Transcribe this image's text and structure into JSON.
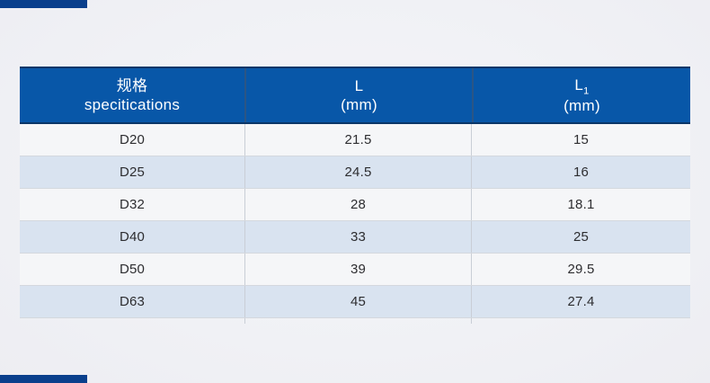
{
  "page": {
    "background_color": "#f0f1f5",
    "corner_bar_color": "#0a3f8c"
  },
  "table": {
    "header": {
      "background_color": "#0857a8",
      "border_color": "#0a3668",
      "text_color": "#ffffff",
      "columns": [
        {
          "line1": "规格",
          "line2": "specitications"
        },
        {
          "line1": "L",
          "line2": "(mm)"
        },
        {
          "line1": "L",
          "sub": "1",
          "line2": "(mm)"
        }
      ]
    },
    "row_colors": {
      "light": "#f5f6f8",
      "blue": "#d9e3f0"
    },
    "rows": [
      {
        "spec": "D20",
        "l": "21.5",
        "l1": "15"
      },
      {
        "spec": "D25",
        "l": "24.5",
        "l1": "16"
      },
      {
        "spec": "D32",
        "l": "28",
        "l1": "18.1"
      },
      {
        "spec": "D40",
        "l": "33",
        "l1": "25"
      },
      {
        "spec": "D50",
        "l": "39",
        "l1": "29.5"
      },
      {
        "spec": "D63",
        "l": "45",
        "l1": "27.4"
      }
    ]
  }
}
